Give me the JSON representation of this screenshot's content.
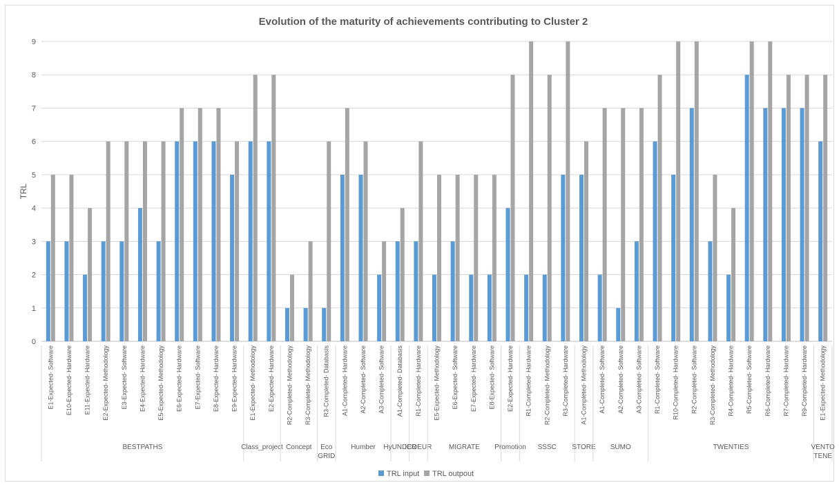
{
  "chart_data": {
    "type": "bar",
    "title": "Evolution of the maturity of achievements contributing to Cluster 2",
    "xlabel": "",
    "ylabel": "TRL",
    "ylim": [
      0,
      9
    ],
    "yticks": [
      "0",
      "1",
      "2",
      "3",
      "4",
      "5",
      "6",
      "7",
      "8",
      "9"
    ],
    "grid": true,
    "legend_position": "bottom",
    "colors": {
      "TRL input": "#5b9bd5",
      "TRL outpout": "#a5a5a5"
    },
    "categories": [
      "E1-Expected- Software",
      "E10-Expected- Hardware",
      "E11-Expected- Hardware",
      "E2-Expected- Methodology",
      "E3-Expected- Software",
      "E4-Expected- Hardware",
      "E5-Expected- Methodology",
      "E6-Expected- Hardware",
      "E7-Expected- Software",
      "E8-Expected- Hardware",
      "E9-Expected- Hardware",
      "E1-Expected- Methodology",
      "E2-Expected- Hardware",
      "R2-Completed- Methodology",
      "R3-Completed- Methodology",
      "R3-Completed- Databasis",
      "A1-Completed- Hardware",
      "A2-Completed- Software",
      "A3-Completed- Software",
      "A1-Completed- Databasis",
      "R1-Completed- Hardware",
      "E5-Expected- Methodology",
      "E6-Expected- Software",
      "E7-Expected- Hardware",
      "E8-Expected- Software",
      "E2-Expected- Hardware",
      "R1-Completed- Hardware",
      "R2-Completed- Methodology",
      "R3-Completed- Hardware",
      "A1-Completed- Methodology",
      "A1-Completed- Software",
      "A2-Completed- Software",
      "A3-Completed- Software",
      "R1-Completed- Software",
      "R10-Completed- Hardware",
      "R2-Completed- Software",
      "R3-Completed- Methodology",
      "R4-Completed- Hardware",
      "R5-Completed- Software",
      "R6-Completed- Hardware",
      "R7-Completed- Hardware",
      "R9-Completed- Hardware",
      "E1-Expected- Methodology"
    ],
    "groups": [
      {
        "label": [
          "BESTPATHS"
        ],
        "count": 11
      },
      {
        "label": [
          "Class_project"
        ],
        "count": 2
      },
      {
        "label": [
          "Concept"
        ],
        "count": 2
      },
      {
        "label": [
          "Eco",
          "GRID"
        ],
        "count": 1
      },
      {
        "label": [
          "Humber"
        ],
        "count": 3
      },
      {
        "label": [
          "HyUNDER"
        ],
        "count": 1
      },
      {
        "label": [
          "ICOEUR"
        ],
        "count": 1
      },
      {
        "label": [
          "MIGRATE"
        ],
        "count": 4
      },
      {
        "label": [
          "Promotion"
        ],
        "count": 1
      },
      {
        "label": [
          "SSSC"
        ],
        "count": 3
      },
      {
        "label": [
          "STORE"
        ],
        "count": 1
      },
      {
        "label": [
          "SUMO"
        ],
        "count": 3
      },
      {
        "label": [
          "TWENTIES"
        ],
        "count": 9
      },
      {
        "label": [
          "VENTO",
          "TENE"
        ],
        "count": 1
      }
    ],
    "series": [
      {
        "name": "TRL input",
        "values": [
          3,
          3,
          2,
          3,
          3,
          4,
          3,
          6,
          6,
          6,
          5,
          6,
          6,
          1,
          1,
          1,
          5,
          5,
          2,
          3,
          3,
          2,
          3,
          2,
          2,
          4,
          2,
          2,
          5,
          5,
          2,
          1,
          3,
          6,
          5,
          7,
          3,
          2,
          8,
          7,
          7,
          7,
          6
        ]
      },
      {
        "name": "TRL outpout",
        "values": [
          5,
          5,
          4,
          6,
          6,
          6,
          6,
          7,
          7,
          7,
          6,
          8,
          8,
          2,
          3,
          6,
          7,
          6,
          3,
          4,
          6,
          5,
          5,
          5,
          5,
          8,
          9,
          8,
          9,
          6,
          7,
          7,
          7,
          8,
          9,
          9,
          5,
          4,
          9,
          9,
          8,
          8,
          8
        ]
      }
    ]
  }
}
